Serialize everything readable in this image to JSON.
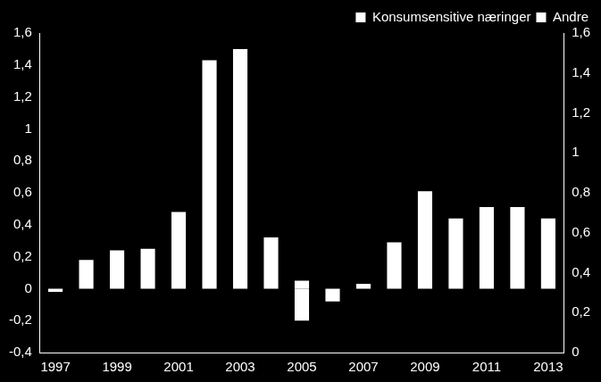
{
  "chart_data": {
    "type": "bar",
    "categories": [
      "1997",
      null,
      "1999",
      null,
      "2001",
      null,
      "2003",
      null,
      "2005",
      null,
      "2007",
      null,
      "2009",
      null,
      "2011",
      null,
      "2013"
    ],
    "series": [
      {
        "name": "Konsumsensitive næringer",
        "color": "#ffffff",
        "values": [
          -0.02,
          0.18,
          0.24,
          0.25,
          0.48,
          1.43,
          1.5,
          0.32,
          0.05,
          -0.08,
          0.03,
          0.29,
          0.61,
          0.44,
          0.51,
          0.51,
          0.44
        ]
      },
      {
        "name": "Andre",
        "color": "#ffffff",
        "values": [
          0,
          0,
          0,
          0,
          0,
          0,
          0,
          0,
          -0.2,
          0,
          0,
          0,
          0,
          0,
          0,
          0,
          0
        ]
      }
    ],
    "stacked": true,
    "legend": "top right",
    "grid": false,
    "ylim": [
      -0.4,
      1.6
    ],
    "yticks": [
      {
        "value": -0.4,
        "label": "-0,4"
      },
      {
        "value": -0.2,
        "label": "-0,2"
      },
      0,
      {
        "value": 0.2,
        "label": "0,2"
      },
      {
        "value": 0.4,
        "label": "0,4"
      },
      {
        "value": 0.6,
        "label": "0,6"
      },
      {
        "value": 0.8,
        "label": "0,8"
      },
      1,
      {
        "value": 1.2,
        "label": "1,2"
      },
      {
        "value": 1.4,
        "label": "1,4"
      },
      {
        "value": 1.6,
        "label": "1,6"
      }
    ],
    "y2lim": [
      0,
      1.6
    ],
    "y2ticks": [
      0,
      {
        "value": 0.2,
        "label": "0,2"
      },
      {
        "value": 0.4,
        "label": "0,4"
      },
      {
        "value": 0.6,
        "label": "0,6"
      },
      {
        "value": 0.8,
        "label": "0,8"
      },
      1,
      {
        "value": 1.2,
        "label": "1,2"
      },
      {
        "value": 1.4,
        "label": "1,4"
      },
      {
        "value": 1.6,
        "label": "1,6"
      }
    ]
  }
}
